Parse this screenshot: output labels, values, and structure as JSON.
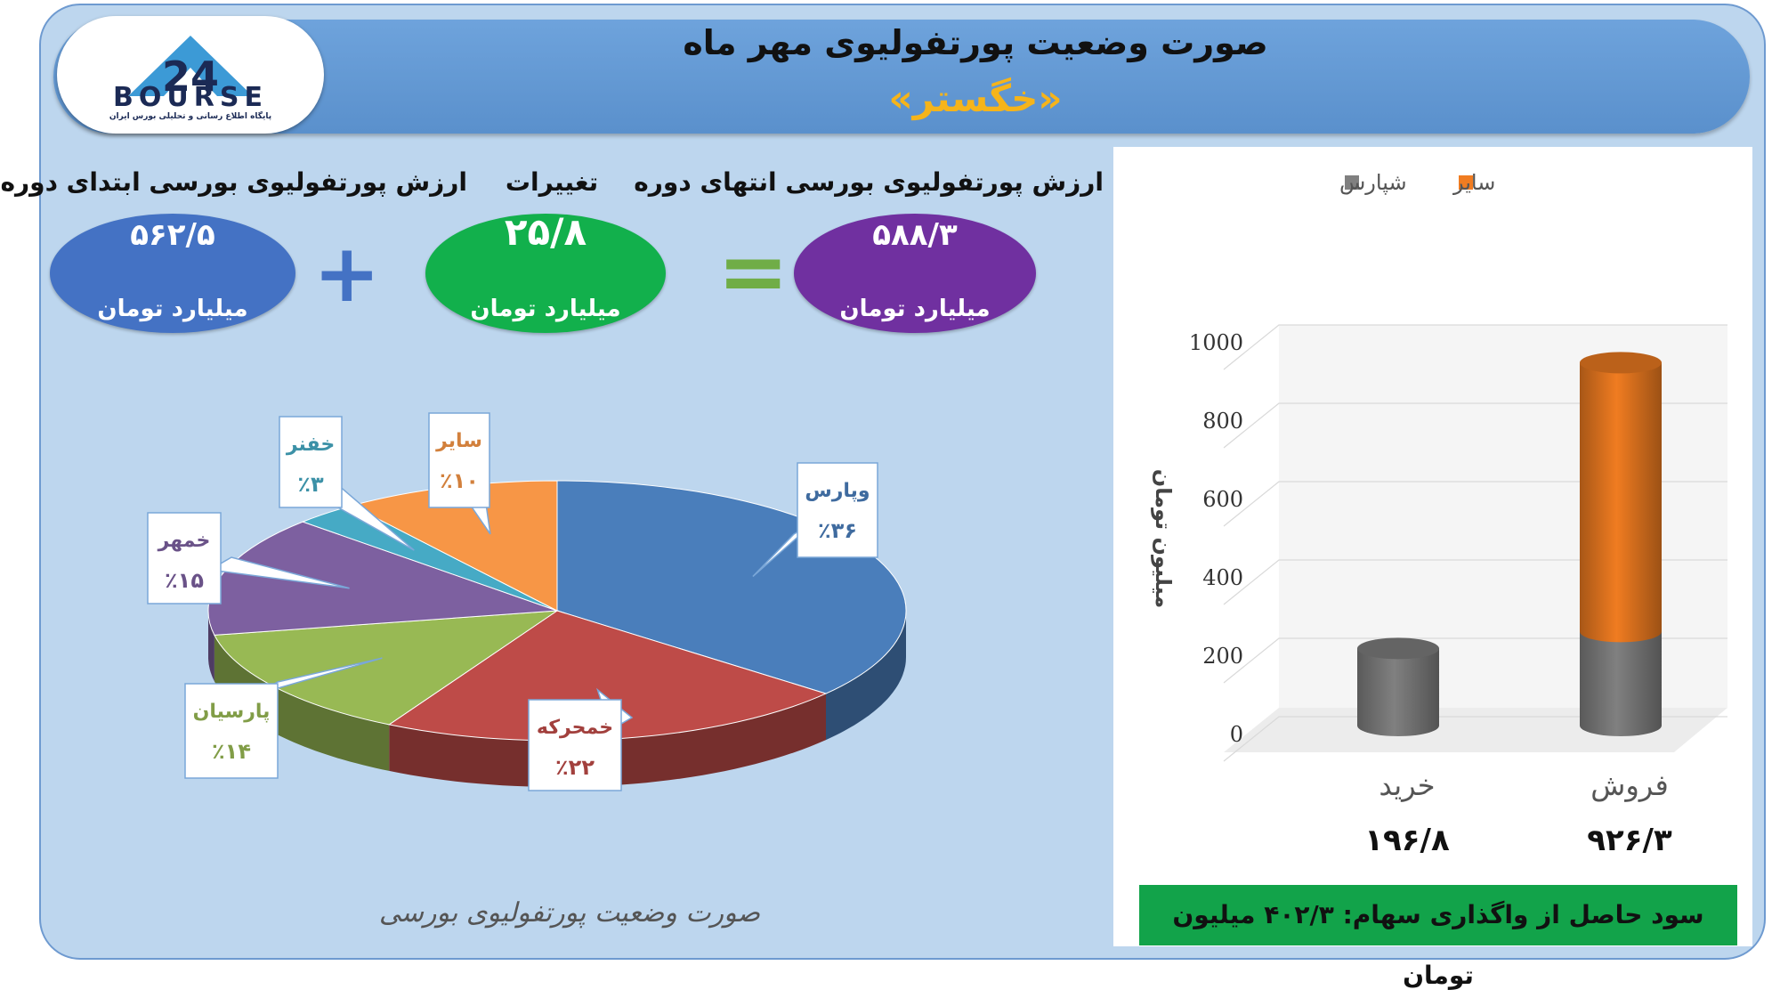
{
  "header": {
    "title": "صورت وضعیت پورتفولیوی مهر ماه",
    "subtitle": "«خگستر»",
    "logo_text": "BOURSE",
    "logo_number": "24",
    "logo_subtext": "پایگاه اطلاع رسانی و تحلیلی بورس ایران"
  },
  "summary": {
    "start_label": "ارزش پورتفولیوی بورسی ابتدای دوره",
    "start_value": "۵۶۲/۵",
    "change_label": "تغییرات",
    "change_value": "۲۵/۸",
    "end_label": "ارزش پورتفولیوی بورسی انتهای دوره",
    "end_value": "۵۸۸/۳",
    "unit": "میلیارد تومان",
    "plus": "+",
    "equals": "=",
    "colors": {
      "start": "#4472c4",
      "change": "#12b04c",
      "end": "#7030a0",
      "plus": "#4472c4",
      "equals": "#70ad47"
    }
  },
  "chart_data": [
    {
      "type": "pie",
      "title": "صورت وضعیت پورتفولیوی بورسی",
      "categories": [
        "وپارس",
        "خمحرکه",
        "پارسیان",
        "خمهر",
        "خفنر",
        "سایر"
      ],
      "values": [
        36,
        22,
        14,
        15,
        3,
        10
      ],
      "labels": [
        "٪۳۶",
        "٪۲۲",
        "٪۱۴",
        "٪۱۵",
        "٪۳",
        "٪۱۰"
      ],
      "colors": [
        "#4a7ebb",
        "#be4b48",
        "#98b954",
        "#7d60a0",
        "#46aac5",
        "#f79646"
      ]
    },
    {
      "type": "bar",
      "stacked": true,
      "categories": [
        "خرید",
        "فروش"
      ],
      "category_totals": [
        "۱۹۶/۸",
        "۹۲۶/۳"
      ],
      "series": [
        {
          "name": "شپارس",
          "values": [
            196.8,
            240
          ],
          "color": "#808080"
        },
        {
          "name": "سایر",
          "values": [
            0,
            686.3
          ],
          "color": "#f07c21"
        }
      ],
      "ylabel": "میلیون تومان",
      "ylim": [
        0,
        1000
      ],
      "yticks": [
        "0",
        "200",
        "400",
        "600",
        "800",
        "1000"
      ],
      "legend": "top"
    }
  ],
  "footer": {
    "profit_text": "سود حاصل از واگذاری سهام: ۴۰۲/۳ میلیون تومان"
  }
}
